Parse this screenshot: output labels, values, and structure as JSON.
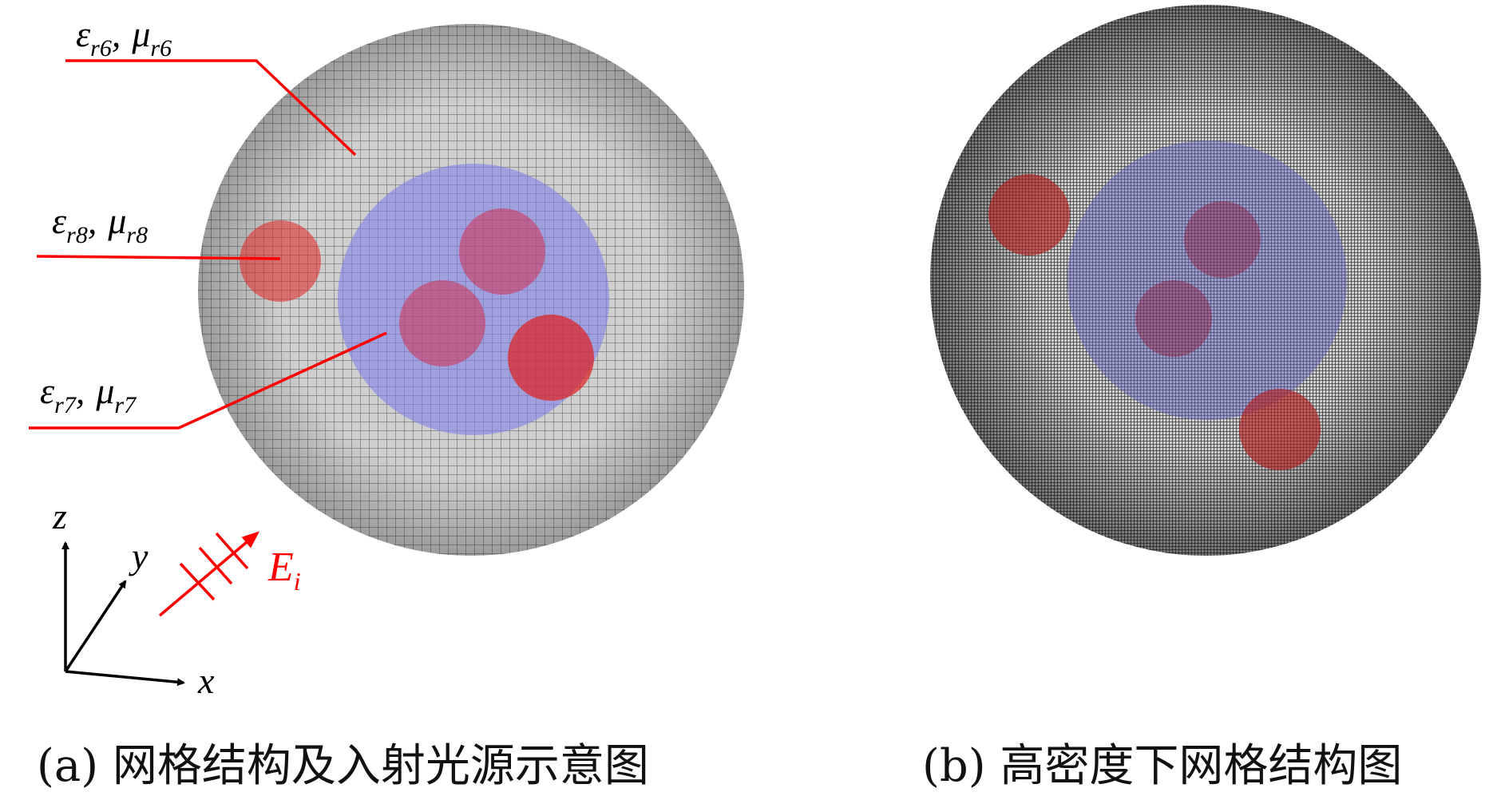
{
  "panel_a": {
    "labels": {
      "layer6": {
        "eps": "ε",
        "eps_sub": "r6",
        "sep": ",",
        "mu": "μ",
        "mu_sub": "r6"
      },
      "layer8": {
        "eps": "ε",
        "eps_sub": "r8",
        "sep": ",",
        "mu": "μ",
        "mu_sub": "r8"
      },
      "layer7": {
        "eps": "ε",
        "eps_sub": "r7",
        "sep": ",",
        "mu": "μ",
        "mu_sub": "r7"
      }
    },
    "axes": {
      "x": "x",
      "y": "y",
      "z": "z"
    },
    "incident": {
      "main": "E",
      "sub": "i"
    },
    "caption": "(a) 网格结构及入射光源示意图"
  },
  "panel_b": {
    "caption": "(b) 高密度下网格结构图"
  },
  "colors": {
    "outer_mesh": "#9a9a9a",
    "inner_sphere": "#8c8ce0",
    "inclusion": "#d23a3a",
    "annotation": "#ff0000",
    "dense_mesh": "#2a2a2a"
  }
}
